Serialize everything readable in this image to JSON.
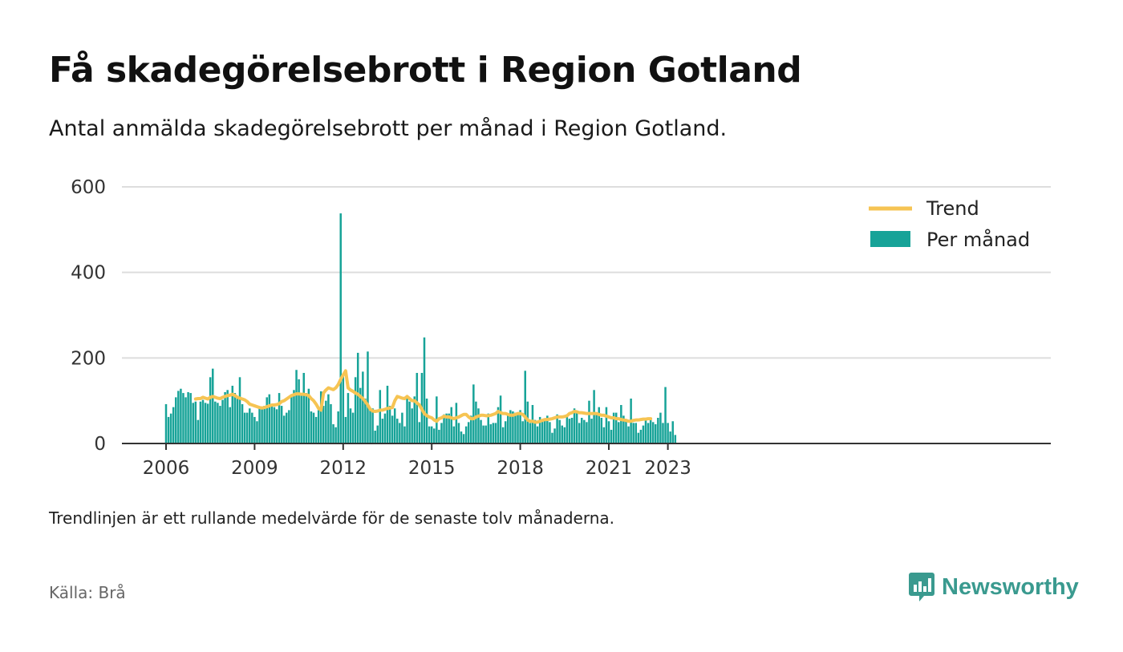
{
  "title": "Få skadegörelsebrott i Region Gotland",
  "subtitle": "Antal anmälda skadegörelsebrott per månad i Region Gotland.",
  "note": "Trendlinjen är ett rullande medelvärde för de senaste tolv månaderna.",
  "source": "Källa: Brå",
  "brand": "Newsworthy",
  "colors": {
    "bars": "#17a398",
    "trend": "#f6c453",
    "grid": "#dddddd",
    "axis": "#333333",
    "brand": "#3a9a8f"
  },
  "chart_data": {
    "type": "bar",
    "x_start": "2006-01",
    "x_ticks": [
      "2006",
      "2009",
      "2012",
      "2015",
      "2018",
      "2021",
      "2023"
    ],
    "y_ticks": [
      "0",
      "200",
      "400",
      "600"
    ],
    "ylim": [
      0,
      600
    ],
    "grid": true,
    "legend_position": "top-right",
    "series": [
      {
        "name": "Per månad",
        "type": "bar",
        "values": [
          92,
          62,
          70,
          85,
          108,
          123,
          128,
          118,
          108,
          120,
          118,
          95,
          98,
          55,
          98,
          102,
          95,
          93,
          155,
          175,
          98,
          95,
          88,
          102,
          120,
          125,
          85,
          135,
          118,
          110,
          155,
          92,
          72,
          72,
          82,
          72,
          62,
          52,
          85,
          85,
          88,
          108,
          115,
          88,
          85,
          80,
          118,
          88,
          65,
          72,
          78,
          112,
          125,
          172,
          150,
          118,
          165,
          118,
          128,
          75,
          72,
          62,
          78,
          122,
          88,
          100,
          115,
          92,
          45,
          38,
          75,
          538,
          160,
          62,
          118,
          82,
          72,
          155,
          212,
          130,
          168,
          105,
          215,
          82,
          82,
          30,
          42,
          125,
          58,
          70,
          135,
          88,
          65,
          82,
          58,
          48,
          72,
          40,
          108,
          98,
          82,
          110,
          165,
          50,
          165,
          248,
          105,
          40,
          40,
          35,
          110,
          32,
          48,
          68,
          70,
          70,
          85,
          40,
          95,
          48,
          28,
          22,
          40,
          50,
          65,
          138,
          98,
          82,
          55,
          42,
          42,
          70,
          45,
          48,
          48,
          85,
          112,
          38,
          52,
          68,
          78,
          75,
          72,
          72,
          78,
          52,
          170,
          98,
          48,
          90,
          55,
          40,
          62,
          55,
          55,
          65,
          50,
          25,
          35,
          68,
          55,
          42,
          38,
          68,
          58,
          60,
          82,
          75,
          48,
          60,
          55,
          50,
          100,
          58,
          125,
          70,
          85,
          60,
          38,
          85,
          52,
          32,
          72,
          72,
          50,
          90,
          65,
          52,
          40,
          105,
          48,
          48,
          25,
          32,
          42,
          55,
          48,
          55,
          50,
          45,
          60,
          72,
          48,
          132,
          48,
          28,
          52,
          20
        ],
        "color": "#17a398"
      },
      {
        "name": "Trend",
        "type": "line",
        "start": "2007-01",
        "values": [
          104,
          105,
          105,
          108,
          106,
          104,
          108,
          110,
          108,
          106,
          105,
          108,
          110,
          112,
          113,
          115,
          112,
          108,
          106,
          104,
          102,
          98,
          92,
          90,
          88,
          86,
          84,
          83,
          84,
          86,
          88,
          90,
          90,
          91,
          93,
          98,
          100,
          104,
          108,
          112,
          114,
          116,
          116,
          115,
          115,
          114,
          112,
          105,
          100,
          92,
          82,
          78,
          118,
          125,
          130,
          128,
          126,
          130,
          138,
          150,
          160,
          170,
          130,
          125,
          122,
          118,
          115,
          110,
          105,
          98,
          90,
          80,
          76,
          75,
          76,
          78,
          78,
          80,
          82,
          83,
          84,
          100,
          110,
          108,
          106,
          105,
          110,
          105,
          100,
          100,
          95,
          90,
          80,
          70,
          65,
          62,
          60,
          55,
          52,
          58,
          60,
          64,
          62,
          62,
          60,
          58,
          60,
          62,
          65,
          68,
          68,
          62,
          58,
          58,
          62,
          64,
          66,
          66,
          65,
          65,
          66,
          68,
          70,
          75,
          72,
          70,
          70,
          68,
          66,
          66,
          68,
          70,
          70,
          68,
          62,
          55,
          52,
          52,
          50,
          50,
          52,
          54,
          56,
          56,
          57,
          58,
          60,
          62,
          62,
          62,
          63,
          65,
          70,
          72,
          75,
          74,
          72,
          72,
          71,
          70,
          70,
          70,
          70,
          70,
          68,
          66,
          66,
          64,
          62,
          60,
          60,
          58,
          58,
          56,
          55,
          54,
          52,
          52,
          54,
          55,
          55,
          56,
          57,
          57,
          58,
          58
        ]
      }
    ]
  }
}
